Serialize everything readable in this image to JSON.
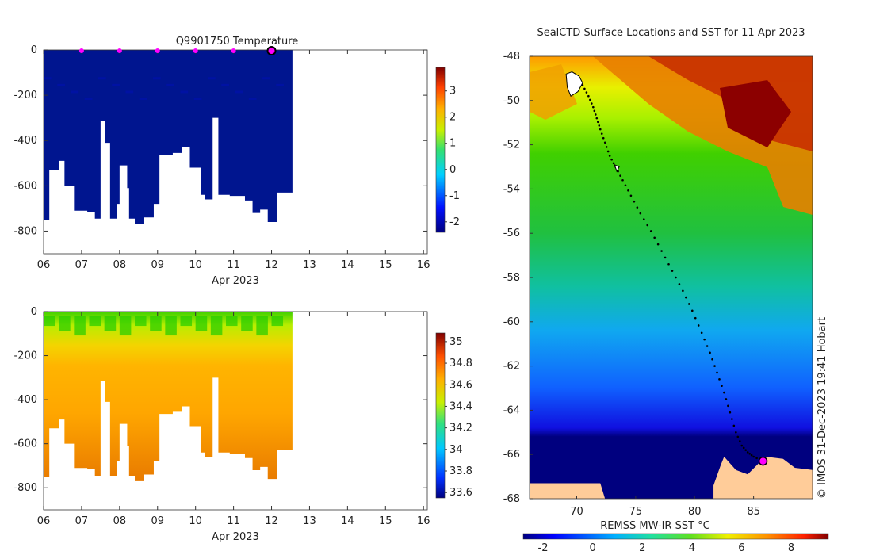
{
  "chart_data": [
    {
      "type": "heatmap",
      "title": "Q9901750  Temperature",
      "xlabel": "Apr 2023",
      "ylabel": "",
      "x_ticks": [
        "06",
        "07",
        "08",
        "09",
        "10",
        "11",
        "12",
        "13",
        "14",
        "15",
        "16"
      ],
      "xlim": [
        6,
        16.1
      ],
      "y_ticks": [
        "0",
        "-200",
        "-400",
        "-600",
        "-800"
      ],
      "ylim": [
        -900,
        0
      ],
      "colorbar_ticks": [
        "3",
        "2",
        "1",
        "0",
        "-1",
        "-2"
      ],
      "colorbar_range": [
        -2.4,
        3.9
      ],
      "profile_markers_day": [
        7,
        8,
        9,
        10,
        11
      ],
      "current_profile_day": 12
    },
    {
      "type": "heatmap",
      "title": "",
      "xlabel": "Apr 2023",
      "ylabel": "",
      "x_ticks": [
        "06",
        "07",
        "08",
        "09",
        "10",
        "11",
        "12",
        "13",
        "14",
        "15",
        "16"
      ],
      "xlim": [
        6,
        16.1
      ],
      "y_ticks": [
        "0",
        "-200",
        "-400",
        "-600",
        "-800"
      ],
      "ylim": [
        -900,
        0
      ],
      "colorbar_ticks": [
        "35",
        "34.8",
        "34.6",
        "34.4",
        "34.2",
        "34",
        "33.8",
        "33.6"
      ],
      "colorbar_range": [
        33.55,
        35.08
      ]
    },
    {
      "type": "heatmap",
      "title": "SealCTD Surface Locations and SST for 11 Apr 2023",
      "xlabel": "REMSS MW-IR SST °C",
      "ylabel": "",
      "x_ticks": [
        "70",
        "75",
        "80",
        "85"
      ],
      "xlim": [
        66,
        90
      ],
      "y_ticks": [
        "-48",
        "-50",
        "-52",
        "-54",
        "-56",
        "-58",
        "-60",
        "-62",
        "-64",
        "-66",
        "-68"
      ],
      "ylim": [
        -68,
        -48
      ],
      "colorbar_ticks": [
        "-2",
        "0",
        "2",
        "4",
        "6",
        "8"
      ],
      "colorbar_range": [
        -2.8,
        9.5
      ],
      "credit": "© IMOS 31-Dec-2023 19:41 Hobart",
      "track_lon": [
        69.8,
        70.5,
        71.0,
        71.4,
        71.7,
        72.0,
        72.4,
        72.8,
        73.3,
        73.9,
        74.6,
        75.4,
        76.3,
        77.2,
        78.1,
        79.0,
        79.8,
        80.6,
        81.3,
        81.9,
        82.5,
        83.0,
        83.5,
        84.0,
        84.5,
        85.0,
        85.8
      ],
      "track_lat": [
        -48.8,
        -49.3,
        -49.8,
        -50.3,
        -50.8,
        -51.3,
        -51.9,
        -52.5,
        -53.0,
        -53.6,
        -54.3,
        -55.1,
        -55.9,
        -56.8,
        -57.7,
        -58.6,
        -59.5,
        -60.5,
        -61.4,
        -62.3,
        -63.2,
        -64.1,
        -65.0,
        -65.6,
        -65.9,
        -66.1,
        -66.3
      ]
    }
  ]
}
